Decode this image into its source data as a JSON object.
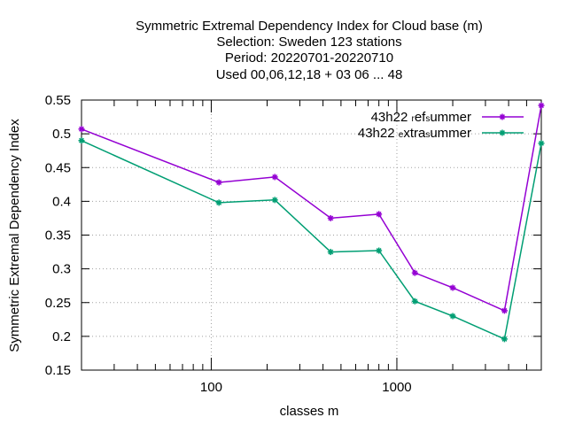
{
  "chart_data": {
    "type": "line",
    "title_lines": [
      "Symmetric Extremal Dependency Index  for Cloud base (m)",
      "Selection: Sweden    123 stations",
      "Period: 20220701-20220710",
      "Used  00,06,12,18  + 03 06 ... 48"
    ],
    "xlabel": "classes m",
    "ylabel": "Symmetric Extremal Dependency Index",
    "x_scale": "log",
    "xlim": [
      20,
      6000
    ],
    "ylim": [
      0.15,
      0.55
    ],
    "x_ticks": [
      100,
      1000
    ],
    "x_tick_labels": [
      "100",
      "1000"
    ],
    "y_ticks": [
      0.15,
      0.2,
      0.25,
      0.3,
      0.35,
      0.4,
      0.45,
      0.5,
      0.55
    ],
    "y_tick_labels": [
      "0.15",
      "0.2",
      "0.25",
      "0.3",
      "0.35",
      "0.4",
      "0.45",
      "0.5",
      "0.55"
    ],
    "grid": true,
    "legend_position": "top-right",
    "series": [
      {
        "legend_main": "43h22",
        "legend_parts": [
          {
            "text": "43h22 ",
            "sub": false
          },
          {
            "text": "r",
            "sub": true
          },
          {
            "text": "ef",
            "sub": false
          },
          {
            "text": "s",
            "sub": true
          },
          {
            "text": "ummer",
            "sub": false
          }
        ],
        "color": "#9400d3",
        "x": [
          20,
          110,
          220,
          440,
          800,
          1250,
          2000,
          3800,
          6000
        ],
        "y": [
          0.507,
          0.428,
          0.436,
          0.375,
          0.381,
          0.294,
          0.272,
          0.238,
          0.542
        ]
      },
      {
        "legend_main": "43h22",
        "legend_parts": [
          {
            "text": "43h22 ",
            "sub": false
          },
          {
            "text": "e",
            "sub": true
          },
          {
            "text": "xtra",
            "sub": false
          },
          {
            "text": "s",
            "sub": true
          },
          {
            "text": "ummer",
            "sub": false
          }
        ],
        "color": "#009e73",
        "x": [
          20,
          110,
          220,
          440,
          800,
          1250,
          2000,
          3800,
          6000
        ],
        "y": [
          0.49,
          0.398,
          0.402,
          0.325,
          0.327,
          0.252,
          0.23,
          0.196,
          0.486
        ]
      }
    ]
  }
}
